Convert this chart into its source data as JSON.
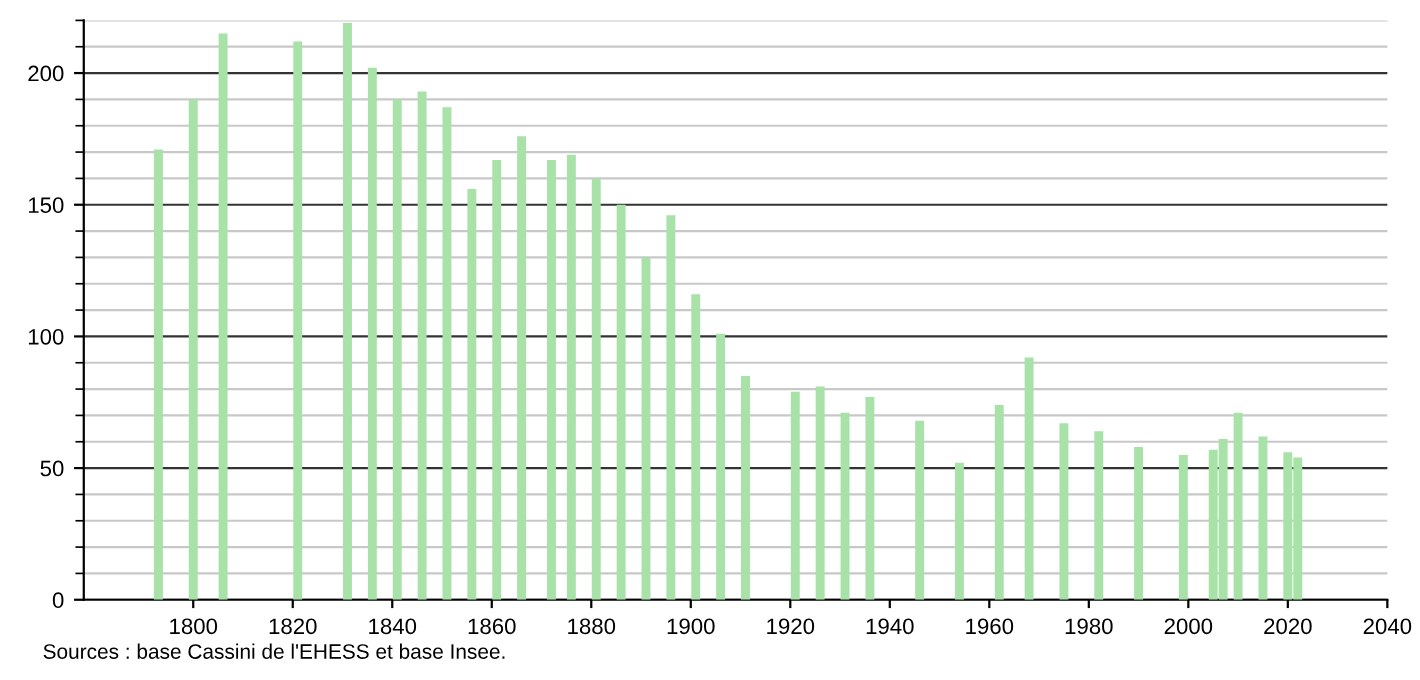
{
  "chart_data": {
    "type": "bar",
    "x": [
      1793,
      1800,
      1806,
      1821,
      1831,
      1836,
      1841,
      1846,
      1851,
      1856,
      1861,
      1866,
      1872,
      1876,
      1881,
      1886,
      1891,
      1896,
      1901,
      1906,
      1911,
      1921,
      1926,
      1931,
      1936,
      1946,
      1954,
      1962,
      1968,
      1975,
      1982,
      1990,
      1999,
      2005,
      2007,
      2010,
      2015,
      2020,
      2022
    ],
    "values": [
      171,
      190,
      215,
      212,
      219,
      202,
      190,
      193,
      187,
      156,
      167,
      176,
      167,
      169,
      160,
      150,
      130,
      146,
      116,
      101,
      85,
      79,
      81,
      71,
      77,
      68,
      52,
      74,
      92,
      67,
      64,
      58,
      55,
      57,
      61,
      71,
      62,
      56,
      54
    ],
    "color": "#a8e2a8",
    "xlim": [
      1778,
      2040
    ],
    "xticks": [
      1800,
      1820,
      1840,
      1860,
      1880,
      1900,
      1920,
      1940,
      1960,
      1980,
      2000,
      2020,
      2040
    ],
    "ylim": [
      0,
      220
    ],
    "yticks": [
      0,
      50,
      100,
      150,
      200
    ],
    "grid": "y",
    "legend": false,
    "annotations": [
      "Sources : base Cassini de l'EHESS et base Insee."
    ]
  }
}
